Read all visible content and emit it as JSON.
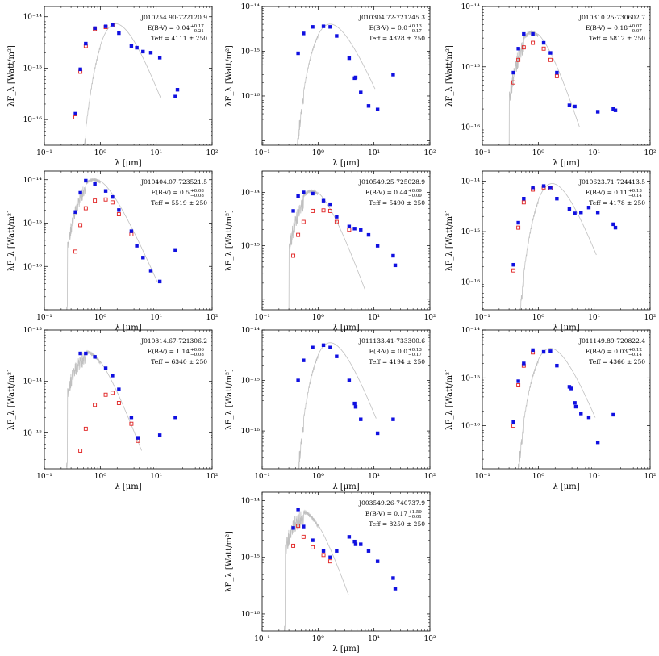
{
  "figure": {
    "xlabel": "λ [μm]",
    "ylabel": "λF_λ [Watt/m²]",
    "colors": {
      "observed": "#1010e0",
      "dereddened": "#e02020",
      "model": "#c0c0c0"
    }
  },
  "chart_data": [
    {
      "type": "scatter",
      "title": "J010254.90-722120.9",
      "ebv": {
        "label": "E(B-V) = 0.04",
        "sup": "+0.17",
        "sub": "−0.21"
      },
      "teff": "Teff = 4111 ± 250",
      "xlim": [
        0.1,
        100
      ],
      "ylim_exp": [
        -16.5,
        -13.8
      ],
      "xticks": [
        "10⁻¹",
        "10⁰",
        "10¹",
        "10²"
      ],
      "yticks": [
        {
          "exp": -16,
          "label": "10⁻¹⁶"
        },
        {
          "exp": -15,
          "label": "10⁻¹⁵"
        },
        {
          "exp": -14,
          "label": "10⁻¹⁴"
        }
      ],
      "observed": [
        [
          0.36,
          1.3e-16
        ],
        [
          0.44,
          9.5e-16
        ],
        [
          0.55,
          3e-15
        ],
        [
          0.8,
          6e-15
        ],
        [
          1.25,
          6.5e-15
        ],
        [
          1.65,
          7e-15
        ],
        [
          2.15,
          4.8e-15
        ],
        [
          3.6,
          2.7e-15
        ],
        [
          4.5,
          2.5e-15
        ],
        [
          5.8,
          2.1e-15
        ],
        [
          8.0,
          2e-15
        ],
        [
          11.6,
          1.6e-15
        ],
        [
          22,
          2.8e-16
        ],
        [
          24,
          3.8e-16
        ]
      ],
      "dereddened": [
        [
          0.36,
          1.1e-16
        ],
        [
          0.44,
          8.5e-16
        ],
        [
          0.55,
          2.7e-15
        ],
        [
          0.8,
          5.8e-15
        ],
        [
          1.25,
          6.3e-15
        ],
        [
          1.65,
          6.8e-15
        ]
      ],
      "model": {
        "peak_wl": 1.5,
        "peak_flux": 6.5e-15,
        "blue_cut": 0.33,
        "red_end": 12
      }
    },
    {
      "type": "scatter",
      "title": "J010304.72-721245.3",
      "ebv": {
        "label": "E(B-V) = 0.0",
        "sup": "+0.13",
        "sub": "−0.17"
      },
      "teff": "Teff = 4328 ± 250",
      "xlim": [
        0.1,
        100
      ],
      "ylim_exp": [
        -17.1,
        -14.0
      ],
      "xticks": [
        "10⁻¹",
        "10⁰",
        "10¹",
        "10²"
      ],
      "yticks": [
        {
          "exp": -16,
          "label": "10⁻¹⁶"
        },
        {
          "exp": -15,
          "label": "10⁻¹⁵"
        },
        {
          "exp": -14,
          "label": "10⁻¹⁴"
        }
      ],
      "observed": [
        [
          0.44,
          9e-16
        ],
        [
          0.55,
          2.5e-15
        ],
        [
          0.8,
          3.5e-15
        ],
        [
          1.25,
          3.6e-15
        ],
        [
          1.65,
          3.5e-15
        ],
        [
          2.15,
          2.2e-15
        ],
        [
          3.6,
          7e-16
        ],
        [
          4.5,
          2.5e-16
        ],
        [
          4.7,
          2.6e-16
        ],
        [
          5.8,
          1.2e-16
        ],
        [
          8.0,
          6e-17
        ],
        [
          11.6,
          5e-17
        ],
        [
          22,
          3e-16
        ]
      ],
      "dereddened": [],
      "model": {
        "peak_wl": 1.3,
        "peak_flux": 3.6e-15,
        "blue_cut": 0.33,
        "red_end": 10.5
      }
    },
    {
      "type": "scatter",
      "title": "J010310.25-730602.7",
      "ebv": {
        "label": "E(B-V) = 0.18",
        "sup": "+0.07",
        "sub": "−0.07"
      },
      "teff": "Teff = 5812 ± 250",
      "xlim": [
        0.1,
        100
      ],
      "ylim_exp": [
        -16.3,
        -14.0
      ],
      "xticks": [
        "10⁻¹",
        "10⁰",
        "10¹",
        "10²"
      ],
      "yticks": [
        {
          "exp": -16,
          "label": "10⁻¹⁶"
        },
        {
          "exp": -15,
          "label": "10⁻¹⁵"
        },
        {
          "exp": -14,
          "label": "10⁻¹⁴"
        }
      ],
      "observed": [
        [
          0.36,
          8e-16
        ],
        [
          0.44,
          2e-15
        ],
        [
          0.55,
          3.5e-15
        ],
        [
          0.8,
          3.5e-15
        ],
        [
          1.25,
          2.5e-15
        ],
        [
          1.65,
          1.7e-15
        ],
        [
          2.15,
          8e-16
        ],
        [
          3.6,
          2.3e-16
        ],
        [
          4.5,
          2.2e-16
        ],
        [
          11.6,
          1.8e-16
        ],
        [
          22,
          2e-16
        ],
        [
          24,
          1.9e-16
        ]
      ],
      "dereddened": [
        [
          0.36,
          5.5e-16
        ],
        [
          0.44,
          1.3e-15
        ],
        [
          0.55,
          2.1e-15
        ],
        [
          0.8,
          2.5e-15
        ],
        [
          1.25,
          2e-15
        ],
        [
          1.65,
          1.3e-15
        ],
        [
          2.15,
          7e-16
        ]
      ],
      "model": {
        "peak_wl": 0.6,
        "peak_flux": 3.5e-15,
        "blue_cut": 0.3,
        "red_end": 5.5
      }
    },
    {
      "type": "scatter",
      "title": "J010404.07-723521.5",
      "ebv": {
        "label": "E(B-V) = 0.5",
        "sup": "+0.08",
        "sub": "−0.08"
      },
      "teff": "Teff = 5519 ± 250",
      "xlim": [
        0.1,
        100
      ],
      "ylim_exp": [
        -17.0,
        -13.8
      ],
      "xticks": [
        "10⁻¹",
        "10⁰",
        "10¹",
        "10²"
      ],
      "yticks": [
        {
          "exp": -16,
          "label": "10⁻¹⁶"
        },
        {
          "exp": -15,
          "label": "10⁻¹⁵"
        },
        {
          "exp": -14,
          "label": "10⁻¹⁴"
        }
      ],
      "observed": [
        [
          0.36,
          1.8e-15
        ],
        [
          0.44,
          5e-15
        ],
        [
          0.55,
          9.5e-15
        ],
        [
          0.8,
          8e-15
        ],
        [
          1.25,
          5.5e-15
        ],
        [
          1.65,
          4e-15
        ],
        [
          2.15,
          2e-15
        ],
        [
          3.6,
          6.5e-16
        ],
        [
          4.5,
          3e-16
        ],
        [
          5.8,
          1.6e-16
        ],
        [
          8.0,
          8e-17
        ],
        [
          11.6,
          4.5e-17
        ],
        [
          22,
          2.4e-16
        ]
      ],
      "dereddened": [
        [
          0.36,
          2.2e-16
        ],
        [
          0.44,
          9e-16
        ],
        [
          0.55,
          2.2e-15
        ],
        [
          0.8,
          3.3e-15
        ],
        [
          1.25,
          3.5e-15
        ],
        [
          1.65,
          3e-15
        ],
        [
          2.15,
          1.6e-15
        ],
        [
          3.6,
          5.5e-16
        ]
      ],
      "model": {
        "peak_wl": 0.6,
        "peak_flux": 9.5e-15,
        "blue_cut": 0.26,
        "red_end": 10.5
      }
    },
    {
      "type": "scatter",
      "title": "J010549.25-725028.9",
      "ebv": {
        "label": "E(B-V) = 0.44",
        "sup": "+0.09",
        "sub": "−0.09"
      },
      "teff": "Teff = 5490 ± 250",
      "xlim": [
        0.1,
        100
      ],
      "ylim_exp": [
        -16.2,
        -13.6
      ],
      "xticks": [
        "10⁻¹",
        "10⁰",
        "10¹",
        "10²"
      ],
      "yticks": [
        {
          "exp": -15,
          "label": "10⁻¹⁵"
        },
        {
          "exp": -14,
          "label": "10⁻¹⁴"
        }
      ],
      "observed": [
        [
          0.36,
          4.5e-15
        ],
        [
          0.44,
          8.5e-15
        ],
        [
          0.55,
          1e-14
        ],
        [
          0.8,
          9.5e-15
        ],
        [
          1.25,
          7e-15
        ],
        [
          1.65,
          6e-15
        ],
        [
          2.15,
          3.5e-15
        ],
        [
          3.6,
          2.3e-15
        ],
        [
          4.5,
          2.1e-15
        ],
        [
          5.8,
          2e-15
        ],
        [
          8.0,
          1.6e-15
        ],
        [
          11.6,
          1e-15
        ],
        [
          22,
          6.5e-16
        ],
        [
          24,
          4.3e-16
        ]
      ],
      "dereddened": [
        [
          0.36,
          6.5e-16
        ],
        [
          0.44,
          1.6e-15
        ],
        [
          0.55,
          2.8e-15
        ],
        [
          0.8,
          4.5e-15
        ],
        [
          1.25,
          4.6e-15
        ],
        [
          1.65,
          4.5e-15
        ],
        [
          2.15,
          2.8e-15
        ],
        [
          3.6,
          2e-15
        ]
      ],
      "model": {
        "peak_wl": 0.6,
        "peak_flux": 1e-14,
        "blue_cut": 0.3,
        "red_end": 7
      }
    },
    {
      "type": "scatter",
      "title": "J010623.71-724413.5",
      "ebv": {
        "label": "E(B-V) = 0.11",
        "sup": "+0.13",
        "sub": "−0.14"
      },
      "teff": "Teff = 4178 ± 250",
      "xlim": [
        0.1,
        100
      ],
      "ylim_exp": [
        -16.55,
        -13.8
      ],
      "xticks": [
        "10⁻¹",
        "10⁰",
        "10¹",
        "10²"
      ],
      "yticks": [
        {
          "exp": -16,
          "label": "10⁻¹⁶"
        },
        {
          "exp": -15,
          "label": "10⁻¹⁵"
        },
        {
          "exp": -14,
          "label": "10⁻¹⁴"
        }
      ],
      "observed": [
        [
          0.36,
          2.2e-16
        ],
        [
          0.44,
          1.5e-15
        ],
        [
          0.55,
          4.5e-15
        ],
        [
          0.8,
          7.5e-15
        ],
        [
          1.25,
          8e-15
        ],
        [
          1.65,
          7.5e-15
        ],
        [
          2.15,
          4.5e-15
        ],
        [
          3.6,
          2.8e-15
        ],
        [
          4.5,
          2.3e-15
        ],
        [
          5.8,
          2.4e-15
        ],
        [
          8.0,
          3e-15
        ],
        [
          11.6,
          2.4e-15
        ],
        [
          22,
          1.4e-15
        ],
        [
          24,
          1.2e-15
        ]
      ],
      "dereddened": [
        [
          0.36,
          1.7e-16
        ],
        [
          0.44,
          1.2e-15
        ],
        [
          0.55,
          3.8e-15
        ],
        [
          0.8,
          6.8e-15
        ],
        [
          1.25,
          7.5e-15
        ],
        [
          1.65,
          7.2e-15
        ]
      ],
      "model": {
        "peak_wl": 1.4,
        "peak_flux": 8e-15,
        "blue_cut": 0.33,
        "red_end": 11
      }
    },
    {
      "type": "scatter",
      "title": "J010814.67-721306.2",
      "ebv": {
        "label": "E(B-V) = 1.14",
        "sup": "+0.06",
        "sub": "−0.08"
      },
      "teff": "Teff = 6340 ± 250",
      "xlim": [
        0.1,
        100
      ],
      "ylim_exp": [
        -15.7,
        -13.0
      ],
      "xticks": [
        "10⁻¹",
        "10⁰",
        "10¹",
        "10²"
      ],
      "yticks": [
        {
          "exp": -15,
          "label": "10⁻¹⁵"
        },
        {
          "exp": -14,
          "label": "10⁻¹⁴"
        },
        {
          "exp": -13,
          "label": "10⁻¹³"
        }
      ],
      "observed": [
        [
          0.44,
          3.5e-14
        ],
        [
          0.55,
          3.5e-14
        ],
        [
          0.8,
          3e-14
        ],
        [
          1.25,
          1.8e-14
        ],
        [
          1.65,
          1.3e-14
        ],
        [
          2.15,
          7e-15
        ],
        [
          3.6,
          2e-15
        ],
        [
          4.7,
          8e-16
        ],
        [
          11.6,
          9e-16
        ],
        [
          22,
          2e-15
        ]
      ],
      "dereddened": [
        [
          0.44,
          4.5e-16
        ],
        [
          0.55,
          1.2e-15
        ],
        [
          0.8,
          3.5e-15
        ],
        [
          1.25,
          5.5e-15
        ],
        [
          1.65,
          6e-15
        ],
        [
          2.15,
          3.8e-15
        ],
        [
          3.6,
          1.5e-15
        ],
        [
          4.7,
          7e-16
        ]
      ],
      "model": {
        "peak_wl": 0.45,
        "peak_flux": 3.5e-14,
        "blue_cut": 0.26,
        "red_end": 5.5
      }
    },
    {
      "type": "scatter",
      "title": "J011133.41-733300.6",
      "ebv": {
        "label": "E(B-V) = 0.0",
        "sup": "+0.13",
        "sub": "−0.17"
      },
      "teff": "Teff = 4194 ± 250",
      "xlim": [
        0.1,
        100
      ],
      "ylim_exp": [
        -16.75,
        -14.0
      ],
      "xticks": [
        "10⁻¹",
        "10⁰",
        "10¹",
        "10²"
      ],
      "yticks": [
        {
          "exp": -16,
          "label": "10⁻¹⁶"
        },
        {
          "exp": -15,
          "label": "10⁻¹⁵"
        },
        {
          "exp": -14,
          "label": "10⁻¹⁴"
        }
      ],
      "observed": [
        [
          0.44,
          1e-15
        ],
        [
          0.55,
          2.5e-15
        ],
        [
          0.8,
          4.5e-15
        ],
        [
          1.25,
          5e-15
        ],
        [
          1.65,
          4.5e-15
        ],
        [
          2.15,
          3e-15
        ],
        [
          3.6,
          1e-15
        ],
        [
          4.5,
          3.5e-16
        ],
        [
          4.7,
          3e-16
        ],
        [
          5.8,
          1.7e-16
        ],
        [
          11.6,
          9e-17
        ],
        [
          22,
          1.7e-16
        ]
      ],
      "dereddened": [],
      "model": {
        "peak_wl": 1.3,
        "peak_flux": 5e-15,
        "blue_cut": 0.33,
        "red_end": 11
      }
    },
    {
      "type": "scatter",
      "title": "J011149.89-720822.4",
      "ebv": {
        "label": "E(B-V) = 0.03",
        "sup": "+0.12",
        "sub": "−0.14"
      },
      "teff": "Teff = 4366 ± 250",
      "xlim": [
        0.1,
        100
      ],
      "ylim_exp": [
        -16.9,
        -14.0
      ],
      "xticks": [
        "10⁻¹",
        "10⁰",
        "10¹",
        "10²"
      ],
      "yticks": [
        {
          "exp": -16,
          "label": "10⁻¹⁶"
        },
        {
          "exp": -15,
          "label": "10⁻¹⁵"
        },
        {
          "exp": -14,
          "label": "10⁻¹⁴"
        }
      ],
      "observed": [
        [
          0.36,
          1.2e-16
        ],
        [
          0.44,
          8.5e-16
        ],
        [
          0.55,
          2e-15
        ],
        [
          0.8,
          3.8e-15
        ],
        [
          1.25,
          3.5e-15
        ],
        [
          1.65,
          3.6e-15
        ],
        [
          2.15,
          1.8e-15
        ],
        [
          3.6,
          6.5e-16
        ],
        [
          3.9,
          6e-16
        ],
        [
          4.5,
          3e-16
        ],
        [
          4.7,
          2.5e-16
        ],
        [
          5.8,
          1.8e-16
        ],
        [
          8.0,
          1.5e-16
        ],
        [
          11.6,
          4.5e-17
        ],
        [
          22,
          1.7e-16
        ]
      ],
      "dereddened": [
        [
          0.36,
          1e-16
        ],
        [
          0.44,
          7e-16
        ],
        [
          0.55,
          1.8e-15
        ],
        [
          0.8,
          3.4e-15
        ]
      ],
      "model": {
        "peak_wl": 1.3,
        "peak_flux": 3.7e-15,
        "blue_cut": 0.33,
        "red_end": 10.5
      }
    },
    {
      "type": "scatter",
      "title": "J003549.26-740737.9",
      "ebv": {
        "label": "E(B-V) = 0.17",
        "sup": "+1.59",
        "sub": "−0.01"
      },
      "teff": "Teff = 8250 ± 250",
      "xlim": [
        0.1,
        100
      ],
      "ylim_exp": [
        -16.3,
        -13.85
      ],
      "xticks": [
        "10⁻¹",
        "10⁰",
        "10¹",
        "10²"
      ],
      "yticks": [
        {
          "exp": -16,
          "label": "10⁻¹⁶"
        },
        {
          "exp": -15,
          "label": "10⁻¹⁵"
        },
        {
          "exp": -14,
          "label": "10⁻¹⁴"
        }
      ],
      "observed": [
        [
          0.36,
          3.3e-15
        ],
        [
          0.44,
          7e-15
        ],
        [
          0.55,
          3.5e-15
        ],
        [
          0.8,
          2e-15
        ],
        [
          1.25,
          1.3e-15
        ],
        [
          1.65,
          1e-15
        ],
        [
          2.15,
          1.3e-15
        ],
        [
          3.6,
          2.3e-15
        ],
        [
          4.5,
          1.9e-15
        ],
        [
          4.7,
          1.7e-15
        ],
        [
          5.8,
          1.7e-15
        ],
        [
          8.0,
          1.3e-15
        ],
        [
          11.6,
          8.5e-16
        ],
        [
          22,
          4.3e-16
        ],
        [
          24,
          2.8e-16
        ]
      ],
      "dereddened": [
        [
          0.36,
          1.6e-15
        ],
        [
          0.44,
          3.6e-15
        ],
        [
          0.55,
          2.3e-15
        ],
        [
          0.8,
          1.5e-15
        ],
        [
          1.25,
          1.1e-15
        ],
        [
          1.65,
          8.5e-16
        ]
      ],
      "model": {
        "peak_wl": 0.42,
        "peak_flux": 6e-15,
        "blue_cut": 0.26,
        "red_end": 3.5
      }
    }
  ]
}
